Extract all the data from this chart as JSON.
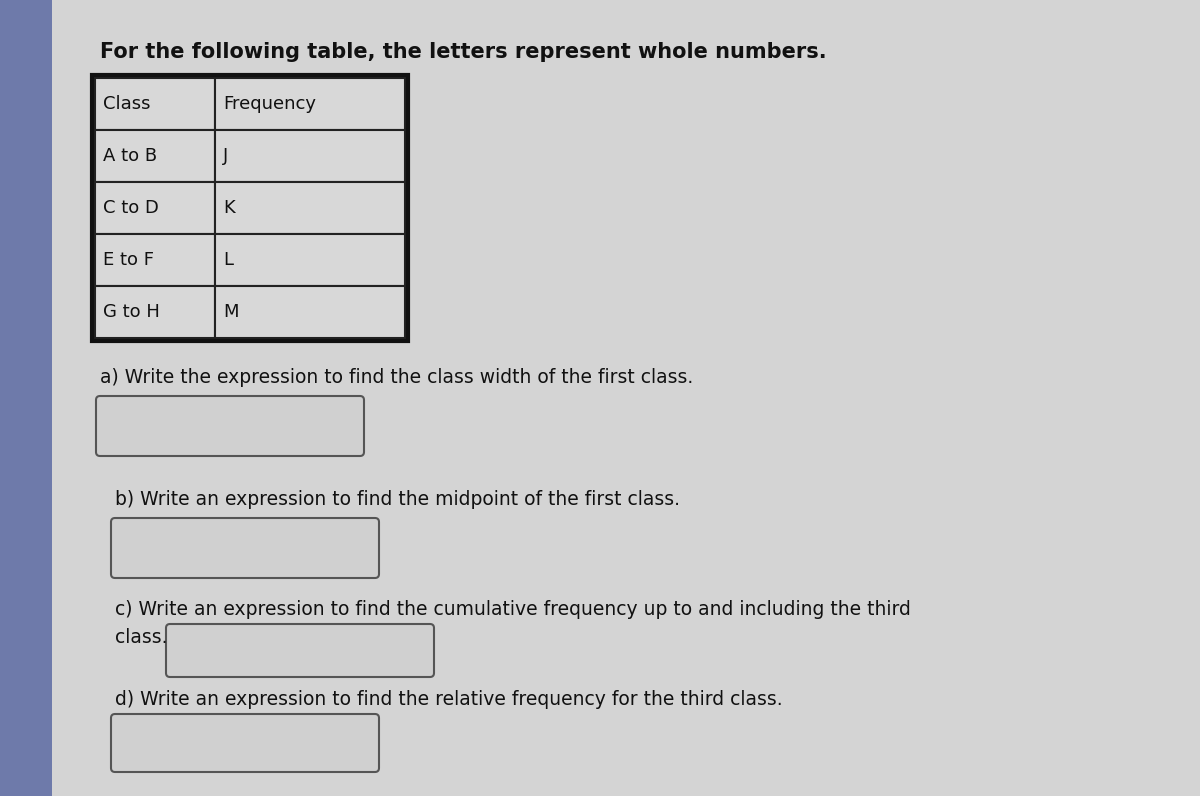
{
  "title": "For the following table, the letters represent whole numbers.",
  "title_fontsize": 15,
  "bg_color": "#bebebe",
  "content_bg": "#d4d4d4",
  "left_stripe_color": "#6e7aaa",
  "table_headers": [
    "Class",
    "Frequency"
  ],
  "table_rows": [
    [
      "A to B",
      "J"
    ],
    [
      "C to D",
      "K"
    ],
    [
      "E to F",
      "L"
    ],
    [
      "G to H",
      "M"
    ]
  ],
  "q_a": "a) Write the expression to find the class width of the first class.",
  "q_b": "b) Write an expression to find the midpoint of the first class.",
  "q_c1": "c) Write an expression to find the cumulative frequency up to and including the third",
  "q_c2": "class.",
  "q_d": "d) Write an expression to find the relative frequency for the third class.",
  "box_face": "#d0d0d0",
  "box_edge": "#555555",
  "text_color": "#111111",
  "cell_face": "#d8d8d8",
  "cell_edge": "#222222"
}
